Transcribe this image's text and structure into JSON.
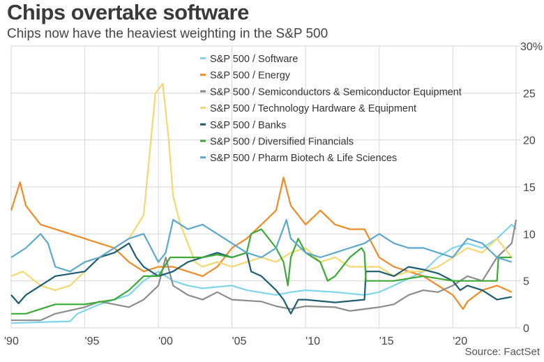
{
  "chart_data": {
    "type": "line",
    "title": "Chips overtake software",
    "subtitle": "Chips now have the heaviest weighting in the S&P 500",
    "source": "Source: FactSet",
    "xlim": [
      1990,
      2024.3
    ],
    "ylim": [
      0,
      30
    ],
    "x_ticks": [
      {
        "v": 1990,
        "label": "'90"
      },
      {
        "v": 1995,
        "label": "'95"
      },
      {
        "v": 2000,
        "label": "'00"
      },
      {
        "v": 2005,
        "label": "'05"
      },
      {
        "v": 2010,
        "label": "'10"
      },
      {
        "v": 2015,
        "label": "'15"
      },
      {
        "v": 2020,
        "label": "'20"
      }
    ],
    "y_ticks": [
      {
        "v": 0,
        "label": "0"
      },
      {
        "v": 5,
        "label": "5"
      },
      {
        "v": 10,
        "label": "10"
      },
      {
        "v": 15,
        "label": "15"
      },
      {
        "v": 20,
        "label": "20"
      },
      {
        "v": 25,
        "label": "25"
      },
      {
        "v": 30,
        "label": "30%"
      }
    ],
    "grid": true,
    "y_axis_side": "right",
    "legend_placement": "top-center",
    "series": [
      {
        "name": "S&P 500 / Software",
        "color": "#7fd3ec",
        "points": [
          [
            1990,
            0.5
          ],
          [
            1994,
            0.7
          ],
          [
            1994.5,
            1.5
          ],
          [
            1996,
            2.5
          ],
          [
            1998,
            3.5
          ],
          [
            1999,
            5
          ],
          [
            2000,
            6
          ],
          [
            2001,
            5
          ],
          [
            2002,
            4.5
          ],
          [
            2003,
            4.2
          ],
          [
            2005,
            4.5
          ],
          [
            2006,
            4
          ],
          [
            2008,
            3.5
          ],
          [
            2009,
            3.8
          ],
          [
            2010,
            4
          ],
          [
            2012,
            3.8
          ],
          [
            2014,
            3.5
          ],
          [
            2015,
            3.8
          ],
          [
            2016,
            4.5
          ],
          [
            2018,
            6
          ],
          [
            2019,
            7.5
          ],
          [
            2020,
            8.5
          ],
          [
            2021,
            9
          ],
          [
            2022,
            8.5
          ],
          [
            2023,
            9.5
          ],
          [
            2024,
            11
          ],
          [
            2024.3,
            10.5
          ]
        ]
      },
      {
        "name": "S&P 500 / Energy",
        "color": "#f08a24",
        "points": [
          [
            1990,
            12.5
          ],
          [
            1990.6,
            15.5
          ],
          [
            1991,
            13
          ],
          [
            1992,
            11
          ],
          [
            1993,
            10.5
          ],
          [
            1994,
            10
          ],
          [
            1995,
            9.5
          ],
          [
            1996,
            9
          ],
          [
            1997,
            8.5
          ],
          [
            1998,
            7
          ],
          [
            1999,
            6
          ],
          [
            2000,
            6.5
          ],
          [
            2001,
            6.5
          ],
          [
            2002,
            6
          ],
          [
            2003,
            5.5
          ],
          [
            2004,
            6.5
          ],
          [
            2005,
            8.5
          ],
          [
            2006,
            9.5
          ],
          [
            2007,
            11
          ],
          [
            2008,
            12.5
          ],
          [
            2008.5,
            16
          ],
          [
            2009,
            13
          ],
          [
            2010,
            11
          ],
          [
            2011,
            12.5
          ],
          [
            2012,
            11
          ],
          [
            2013,
            10.5
          ],
          [
            2014,
            10.5
          ],
          [
            2015,
            7.5
          ],
          [
            2016,
            6.5
          ],
          [
            2017,
            6
          ],
          [
            2018,
            5.5
          ],
          [
            2019,
            4.5
          ],
          [
            2020,
            3.5
          ],
          [
            2020.7,
            2
          ],
          [
            2021,
            2.8
          ],
          [
            2022,
            4
          ],
          [
            2023,
            4.5
          ],
          [
            2024,
            3.8
          ]
        ]
      },
      {
        "name": "S&P 500 / Semiconductors & Semiconductor Equipment",
        "color": "#8c8c8c",
        "points": [
          [
            1990,
            0.8
          ],
          [
            1992,
            0.8
          ],
          [
            1993,
            1.5
          ],
          [
            1995,
            2.2
          ],
          [
            1996,
            2.8
          ],
          [
            1997,
            2.5
          ],
          [
            1998,
            2.2
          ],
          [
            1999,
            3
          ],
          [
            2000,
            4.5
          ],
          [
            2000.5,
            7.5
          ],
          [
            2001,
            4.5
          ],
          [
            2002,
            3.5
          ],
          [
            2003,
            3
          ],
          [
            2004,
            3.8
          ],
          [
            2005,
            3
          ],
          [
            2007,
            2.8
          ],
          [
            2008,
            2.3
          ],
          [
            2009,
            2
          ],
          [
            2010,
            2.3
          ],
          [
            2012,
            2.2
          ],
          [
            2013,
            1.8
          ],
          [
            2014,
            2
          ],
          [
            2015,
            2.2
          ],
          [
            2016,
            2.5
          ],
          [
            2017,
            3.5
          ],
          [
            2018,
            4
          ],
          [
            2019,
            3.8
          ],
          [
            2020,
            4.5
          ],
          [
            2021,
            5.5
          ],
          [
            2022,
            5
          ],
          [
            2023,
            7.5
          ],
          [
            2024,
            9
          ],
          [
            2024.3,
            11.5
          ]
        ]
      },
      {
        "name": "S&P 500 / Technology Hardware & Equipment",
        "color": "#f5d76e",
        "points": [
          [
            1990,
            5.5
          ],
          [
            1990.8,
            6
          ],
          [
            1992,
            4.5
          ],
          [
            1993,
            4
          ],
          [
            1994,
            4.5
          ],
          [
            1995,
            6
          ],
          [
            1996,
            7.5
          ],
          [
            1997,
            8.5
          ],
          [
            1998,
            9.5
          ],
          [
            1999,
            12
          ],
          [
            1999.8,
            25
          ],
          [
            2000.3,
            26
          ],
          [
            2000.7,
            20
          ],
          [
            2001,
            14
          ],
          [
            2001.5,
            11
          ],
          [
            2002,
            9
          ],
          [
            2002.5,
            7
          ],
          [
            2003,
            6.5
          ],
          [
            2004,
            7
          ],
          [
            2005,
            6.5
          ],
          [
            2006,
            7
          ],
          [
            2007,
            7.5
          ],
          [
            2008,
            7
          ],
          [
            2009,
            8
          ],
          [
            2010,
            8.5
          ],
          [
            2011,
            7
          ],
          [
            2012,
            7.5
          ],
          [
            2013,
            6.5
          ],
          [
            2014,
            6.5
          ],
          [
            2015,
            6.5
          ],
          [
            2016,
            5.5
          ],
          [
            2017,
            6
          ],
          [
            2018,
            6
          ],
          [
            2019,
            6.5
          ],
          [
            2020,
            7.5
          ],
          [
            2021,
            8.5
          ],
          [
            2022,
            8
          ],
          [
            2023,
            9.5
          ],
          [
            2024,
            7.5
          ]
        ]
      },
      {
        "name": "S&P 500 / Banks",
        "color": "#1d5c73",
        "points": [
          [
            1990,
            3.5
          ],
          [
            1990.5,
            2.6
          ],
          [
            1991,
            3.5
          ],
          [
            1992,
            4.5
          ],
          [
            1993,
            5.5
          ],
          [
            1995,
            6
          ],
          [
            1996,
            7.5
          ],
          [
            1997,
            8
          ],
          [
            1998,
            9
          ],
          [
            1998.5,
            7.5
          ],
          [
            1999,
            6.5
          ],
          [
            2000,
            5.5
          ],
          [
            2001,
            6
          ],
          [
            2002,
            7
          ],
          [
            2003,
            7.5
          ],
          [
            2004,
            8
          ],
          [
            2005,
            7.5
          ],
          [
            2006,
            8
          ],
          [
            2006.3,
            6
          ],
          [
            2007,
            5.5
          ],
          [
            2008,
            4
          ],
          [
            2008.5,
            3
          ],
          [
            2009,
            1.5
          ],
          [
            2009.5,
            3
          ],
          [
            2010,
            3
          ],
          [
            2012,
            2.7
          ],
          [
            2014,
            3
          ],
          [
            2014.1,
            6
          ],
          [
            2015,
            6
          ],
          [
            2016,
            5.5
          ],
          [
            2017,
            6.5
          ],
          [
            2018,
            6.2
          ],
          [
            2019,
            5.8
          ],
          [
            2020,
            5
          ],
          [
            2020.5,
            4
          ],
          [
            2021,
            4.5
          ],
          [
            2022,
            4
          ],
          [
            2023,
            3
          ],
          [
            2024,
            3.3
          ]
        ]
      },
      {
        "name": "S&P 500 / Diversified Financials",
        "color": "#3aaa35",
        "points": [
          [
            1990,
            1.5
          ],
          [
            1991,
            1.5
          ],
          [
            1992,
            2
          ],
          [
            1993,
            2.5
          ],
          [
            1995,
            2.5
          ],
          [
            1997,
            3
          ],
          [
            1998,
            4
          ],
          [
            1999,
            5.5
          ],
          [
            2000,
            5.5
          ],
          [
            2000.8,
            7.5
          ],
          [
            2002,
            7.5
          ],
          [
            2003,
            7.5
          ],
          [
            2004,
            7.8
          ],
          [
            2005,
            7.5
          ],
          [
            2006,
            8
          ],
          [
            2006.3,
            10
          ],
          [
            2007,
            10.5
          ],
          [
            2008,
            8.5
          ],
          [
            2008.5,
            7
          ],
          [
            2008.8,
            4.5
          ],
          [
            2009,
            7.5
          ],
          [
            2009.5,
            9.5
          ],
          [
            2010,
            8
          ],
          [
            2011,
            7
          ],
          [
            2011.5,
            5
          ],
          [
            2012,
            5.5
          ],
          [
            2013,
            7.5
          ],
          [
            2013.8,
            8.5
          ],
          [
            2014,
            8
          ],
          [
            2014.1,
            5
          ],
          [
            2015,
            5
          ],
          [
            2016,
            5
          ],
          [
            2018,
            5.5
          ],
          [
            2020,
            5
          ],
          [
            2022,
            5
          ],
          [
            2023,
            5
          ],
          [
            2023.1,
            7.5
          ],
          [
            2024,
            7.5
          ]
        ]
      },
      {
        "name": "S&P 500 / Pharm  Biotech & Life Sciences",
        "color": "#5aa8cc",
        "points": [
          [
            1990,
            7.5
          ],
          [
            1991,
            8.5
          ],
          [
            1992,
            10
          ],
          [
            1992.5,
            9
          ],
          [
            1993,
            6.5
          ],
          [
            1994,
            6
          ],
          [
            1995,
            7
          ],
          [
            1996,
            7.5
          ],
          [
            1997,
            8.5
          ],
          [
            1998,
            9.5
          ],
          [
            1999,
            10
          ],
          [
            2000,
            7
          ],
          [
            2000.5,
            8
          ],
          [
            2001,
            11.5
          ],
          [
            2002,
            10.5
          ],
          [
            2003,
            11
          ],
          [
            2004,
            10
          ],
          [
            2005,
            9
          ],
          [
            2006,
            8
          ],
          [
            2007,
            7.5
          ],
          [
            2008,
            8.5
          ],
          [
            2008.7,
            11.5
          ],
          [
            2009,
            9.5
          ],
          [
            2010,
            8
          ],
          [
            2011,
            7.5
          ],
          [
            2012,
            8
          ],
          [
            2013,
            8.5
          ],
          [
            2014,
            9
          ],
          [
            2015,
            10
          ],
          [
            2016,
            9
          ],
          [
            2017,
            8.5
          ],
          [
            2018,
            8.5
          ],
          [
            2019,
            8
          ],
          [
            2020,
            7.5
          ],
          [
            2021,
            9.5
          ],
          [
            2022,
            9
          ],
          [
            2023,
            7.5
          ],
          [
            2024,
            7
          ]
        ]
      }
    ]
  }
}
